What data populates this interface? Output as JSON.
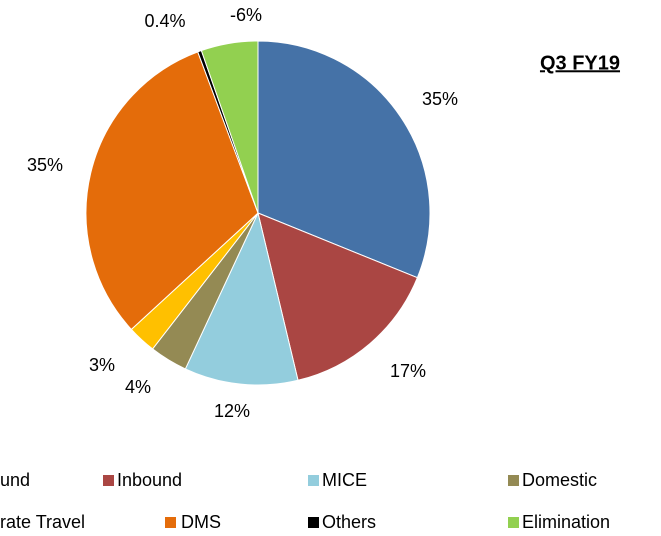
{
  "chart_data": {
    "type": "pie",
    "title": "Q3 FY19",
    "categories": [
      "und",
      "Inbound",
      "MICE",
      "Domestic",
      "rate Travel",
      "DMS",
      "Others",
      "Elimination"
    ],
    "values": [
      35,
      17,
      12,
      4,
      3,
      35,
      0.4,
      -6
    ],
    "value_labels": [
      "35%",
      "17%",
      "12%",
      "4%",
      "3%",
      "35%",
      "0.4%",
      "-6%"
    ],
    "colors": [
      "#4572a7",
      "#aa4643",
      "#93cddd",
      "#948a54",
      "#ffc000",
      "#e46c0a",
      "#000000",
      "#92d050"
    ],
    "legend": "bottom"
  }
}
